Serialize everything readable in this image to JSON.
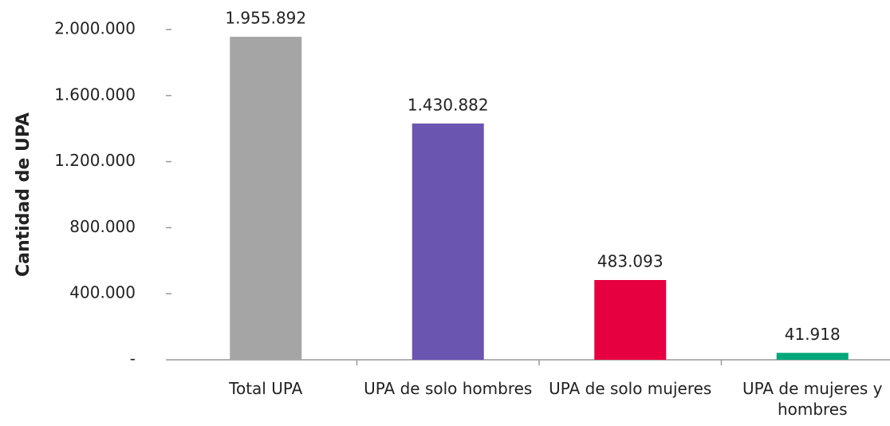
{
  "chart_data": {
    "type": "bar",
    "y_label": "Cantidad de UPA",
    "categories": [
      "Total UPA",
      "UPA de solo hombres",
      "UPA de solo mujeres",
      "UPA de mujeres y hombres"
    ],
    "values": [
      1955892,
      1430882,
      483093,
      41918
    ],
    "value_labels": [
      "1.955.892",
      "1.430.882",
      "483.093",
      "41.918"
    ],
    "colors": [
      "#a5a5a5",
      "#6a55b0",
      "#e60040",
      "#00a77a"
    ],
    "ylim": [
      0,
      2000000
    ],
    "yticks": [
      {
        "value": 0,
        "label": "-"
      },
      {
        "value": 400000,
        "label": "400.000"
      },
      {
        "value": 800000,
        "label": "800.000"
      },
      {
        "value": 1200000,
        "label": "1.200.000"
      },
      {
        "value": 1600000,
        "label": "1.600.000"
      },
      {
        "value": 2000000,
        "label": "2.000.000"
      }
    ],
    "grid": false
  }
}
